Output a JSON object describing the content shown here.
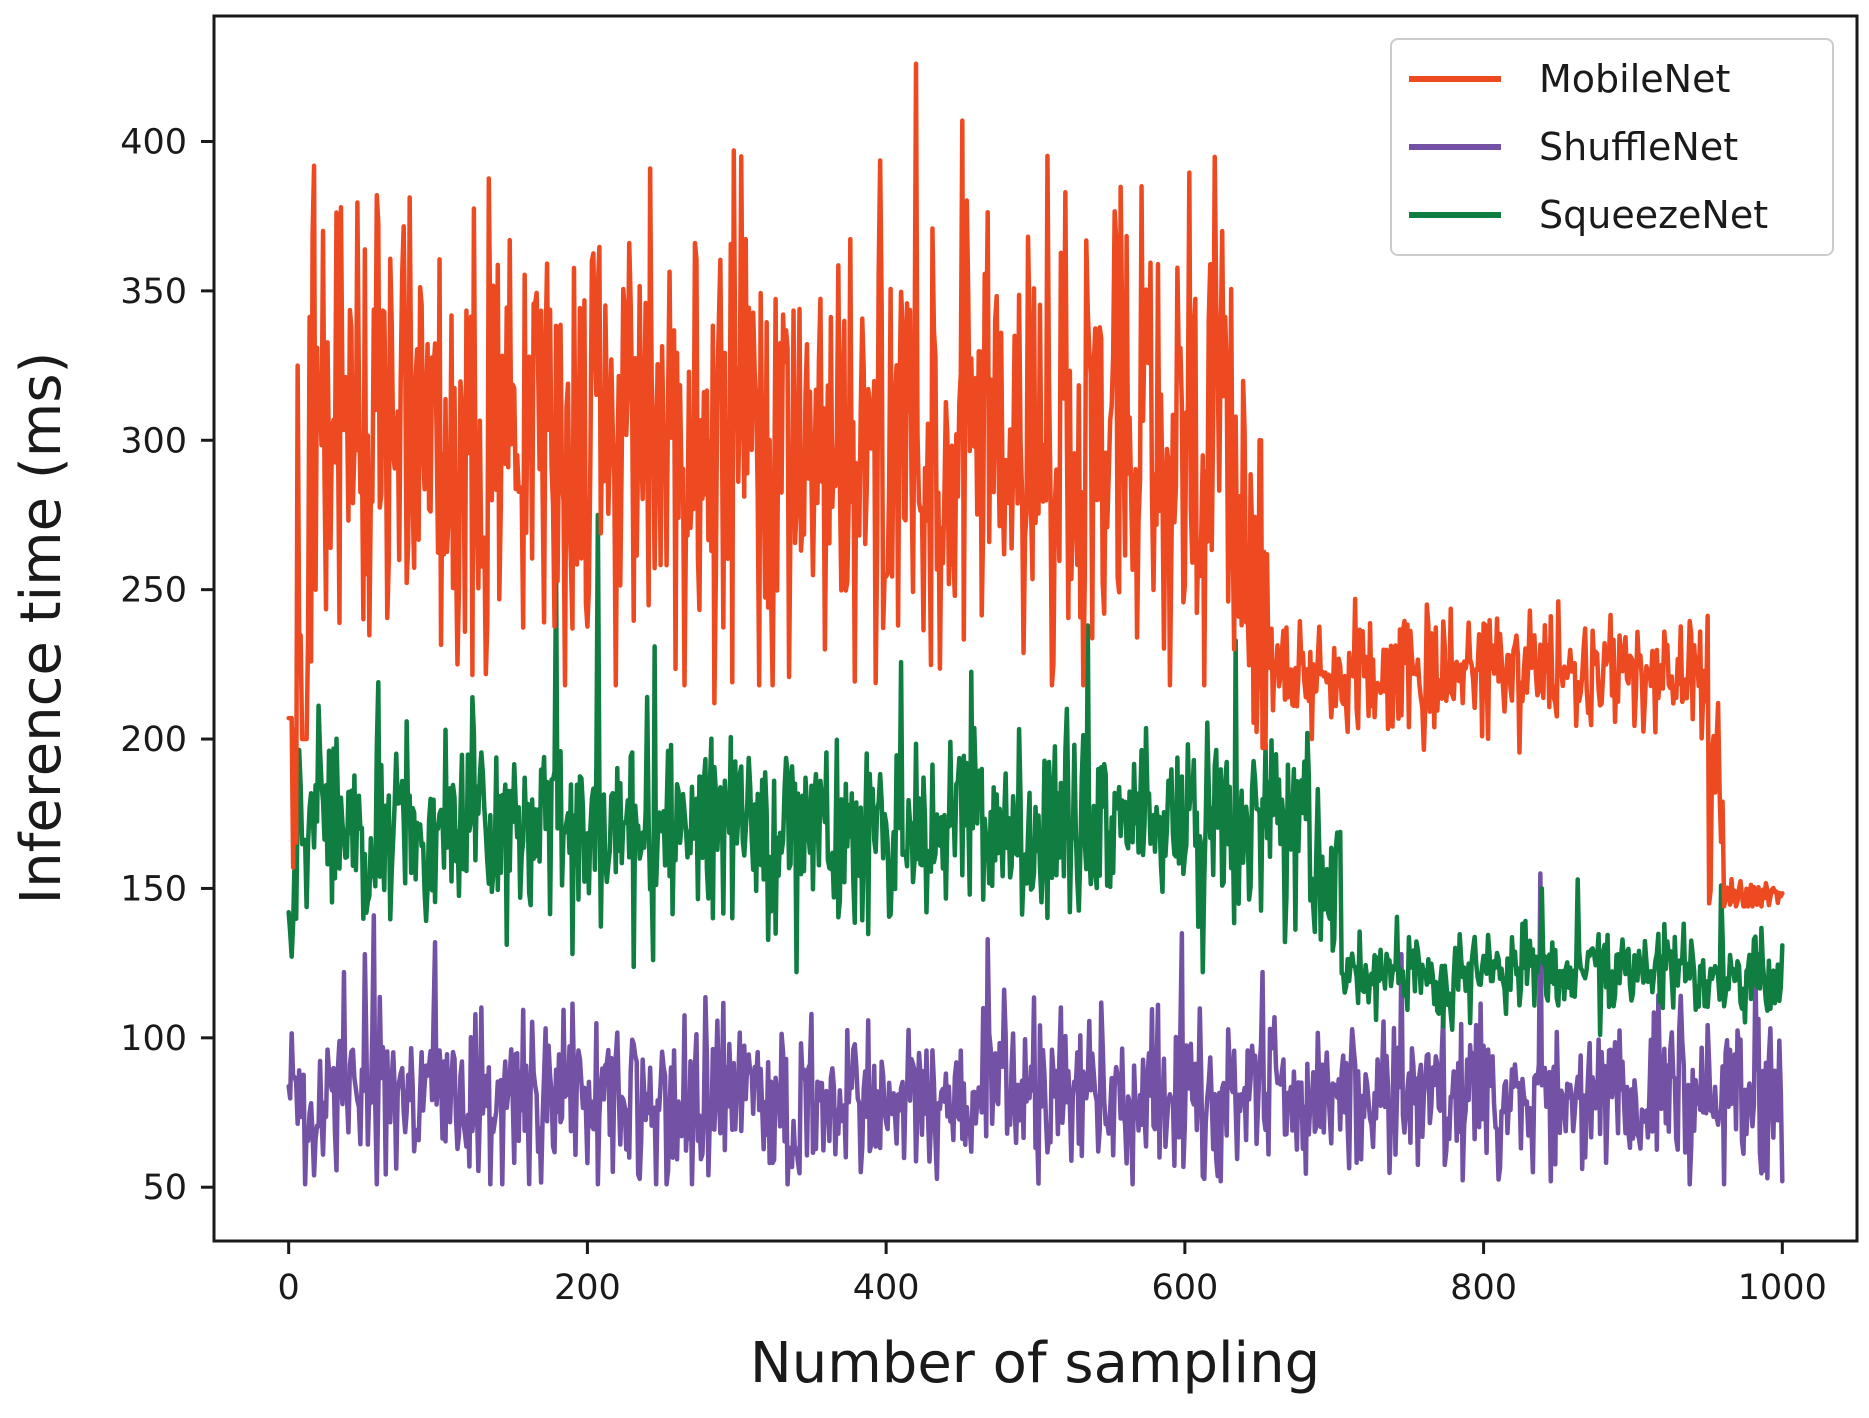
{
  "chart_data": {
    "type": "line",
    "title": "",
    "xlabel": "Number of sampling",
    "ylabel": "Inference time (ms)",
    "xlim": [
      -50,
      1050
    ],
    "ylim": [
      32,
      442
    ],
    "xticks": [
      0,
      200,
      400,
      600,
      800,
      1000
    ],
    "yticks": [
      50,
      100,
      150,
      200,
      250,
      300,
      350,
      400
    ],
    "x_range": [
      0,
      1000
    ],
    "grid": false,
    "legend_position": "top-right",
    "series": [
      {
        "name": "MobileNet",
        "color": "#ee4a22",
        "segments": [
          {
            "from": 0,
            "to": 5,
            "mean": 200,
            "amp": 25,
            "min": 157,
            "max": 207
          },
          {
            "from": 5,
            "to": 12,
            "mean": 245,
            "amp": 60,
            "min": 200,
            "max": 325
          },
          {
            "from": 12,
            "to": 640,
            "mean": 300,
            "amp": 38,
            "min": 218,
            "max": 426
          },
          {
            "from": 640,
            "to": 655,
            "mean": 255,
            "amp": 35,
            "min": 197,
            "max": 300
          },
          {
            "from": 655,
            "to": 950,
            "mean": 222,
            "amp": 10,
            "min": 190,
            "max": 260
          },
          {
            "from": 950,
            "to": 960,
            "mean": 180,
            "amp": 20,
            "min": 145,
            "max": 230
          },
          {
            "from": 960,
            "to": 1000,
            "mean": 148,
            "amp": 3,
            "min": 144,
            "max": 156
          }
        ],
        "spikes": [
          [
            420,
            426
          ],
          [
            298,
            397
          ],
          [
            451,
            407
          ],
          [
            59,
            382
          ],
          [
            35,
            378
          ],
          [
            571,
            385
          ],
          [
            520,
            383
          ],
          [
            303,
            395
          ],
          [
            228,
            366
          ],
          [
            203,
            360
          ],
          [
            148,
            367
          ],
          [
            272,
            366
          ],
          [
            625,
            370
          ],
          [
            297,
            219
          ],
          [
            113,
            225
          ],
          [
            359,
            230
          ],
          [
            408,
            238
          ],
          [
            568,
            234
          ],
          [
            285,
            212
          ],
          [
            512,
            225
          ],
          [
            635,
            257
          ]
        ]
      },
      {
        "name": "ShuffleNet",
        "color": "#7351a4",
        "segments": [
          {
            "from": 0,
            "to": 1000,
            "mean": 80,
            "amp": 13,
            "min": 51,
            "max": 120
          }
        ],
        "spikes": [
          [
            57,
            141
          ],
          [
            51,
            128
          ],
          [
            98,
            132
          ],
          [
            37,
            122
          ],
          [
            468,
            133
          ],
          [
            598,
            135
          ],
          [
            838,
            155
          ],
          [
            652,
            122
          ],
          [
            745,
            128
          ],
          [
            982,
            123
          ],
          [
            1000,
            52
          ],
          [
            143,
            51
          ],
          [
            270,
            51
          ],
          [
            334,
            51
          ],
          [
            624,
            52
          ],
          [
            845,
            52
          ],
          [
            938,
            51
          ],
          [
            990,
            53
          ]
        ]
      },
      {
        "name": "SqueezeNet",
        "color": "#107d41",
        "segments": [
          {
            "from": 0,
            "to": 5,
            "mean": 140,
            "amp": 10,
            "min": 126,
            "max": 160
          },
          {
            "from": 5,
            "to": 690,
            "mean": 170,
            "amp": 15,
            "min": 122,
            "max": 238
          },
          {
            "from": 690,
            "to": 705,
            "mean": 145,
            "amp": 20,
            "min": 118,
            "max": 175
          },
          {
            "from": 705,
            "to": 1000,
            "mean": 122,
            "amp": 7,
            "min": 101,
            "max": 152
          }
        ],
        "spikes": [
          [
            207,
            275
          ],
          [
            179,
            257
          ],
          [
            245,
            231
          ],
          [
            535,
            238
          ],
          [
            634,
            233
          ],
          [
            60,
            219
          ],
          [
            123,
            214
          ],
          [
            340,
            122
          ],
          [
            244,
            126
          ],
          [
            863,
            153
          ],
          [
            959,
            151
          ],
          [
            839,
            150
          ],
          [
            728,
            106
          ]
        ]
      }
    ],
    "legend": [
      "MobileNet",
      "ShuffleNet",
      "SqueezeNet"
    ]
  }
}
